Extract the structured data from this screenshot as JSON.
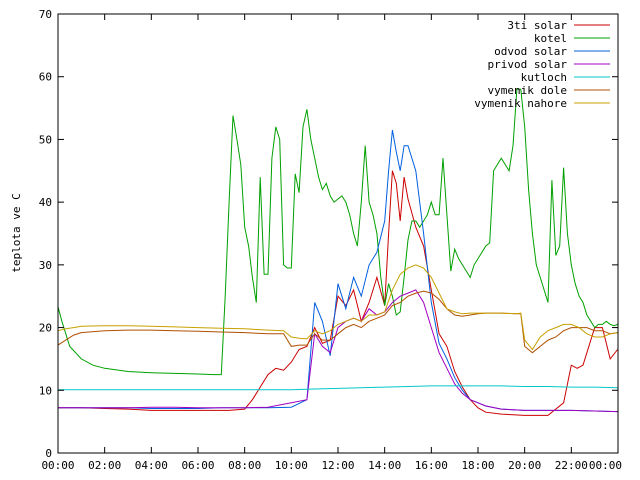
{
  "chart_data": {
    "type": "line",
    "ylabel": "teplota ve C",
    "xlabel": "",
    "title": "",
    "xlim": [
      "00:00",
      "00:00"
    ],
    "ylim": [
      0,
      70
    ],
    "x_ticks": [
      "00:00",
      "02:00",
      "04:00",
      "06:00",
      "08:00",
      "10:00",
      "12:00",
      "14:00",
      "16:00",
      "18:00",
      "20:00",
      "22:00",
      "00:00"
    ],
    "y_ticks": [
      0,
      10,
      20,
      30,
      40,
      50,
      60,
      70
    ],
    "grid": false,
    "legend_position": "top-right",
    "series": [
      {
        "name": "3ti solar",
        "color": "#cc0000",
        "x": [
          0,
          60,
          120,
          180,
          240,
          300,
          360,
          420,
          440,
          460,
          480,
          500,
          520,
          540,
          560,
          580,
          600,
          620,
          640,
          660,
          680,
          700,
          720,
          740,
          760,
          780,
          800,
          820,
          840,
          850,
          860,
          870,
          880,
          890,
          900,
          920,
          940,
          960,
          980,
          1000,
          1020,
          1040,
          1060,
          1080,
          1100,
          1140,
          1200,
          1260,
          1300,
          1320,
          1335,
          1350,
          1380,
          1400,
          1420,
          1439
        ],
        "y": [
          7.2,
          7.2,
          7.1,
          7.0,
          6.8,
          6.8,
          6.8,
          6.8,
          6.8,
          6.9,
          7.0,
          8.5,
          10.5,
          12.5,
          13.5,
          13.2,
          14.5,
          16.5,
          17.0,
          20.0,
          17.5,
          18.0,
          25.0,
          23.5,
          26.0,
          21.0,
          24.0,
          28.0,
          23.5,
          35.0,
          45.0,
          43.0,
          37.0,
          44.0,
          40.5,
          36.0,
          33.0,
          26.0,
          19.0,
          17.0,
          13.0,
          10.5,
          8.5,
          7.2,
          6.5,
          6.2,
          6.0,
          6.0,
          8.0,
          14.0,
          13.5,
          14.0,
          20.0,
          20.0,
          15.0,
          16.5
        ]
      },
      {
        "name": "kotel",
        "color": "#00a000",
        "x": [
          0,
          10,
          20,
          30,
          60,
          90,
          120,
          180,
          240,
          300,
          360,
          400,
          420,
          430,
          440,
          450,
          460,
          470,
          480,
          490,
          500,
          510,
          520,
          530,
          540,
          550,
          560,
          570,
          580,
          590,
          600,
          610,
          620,
          630,
          640,
          650,
          660,
          670,
          680,
          690,
          700,
          710,
          720,
          730,
          740,
          750,
          760,
          770,
          780,
          790,
          800,
          810,
          820,
          830,
          840,
          850,
          860,
          870,
          880,
          890,
          900,
          910,
          920,
          930,
          940,
          950,
          960,
          970,
          980,
          990,
          1000,
          1010,
          1020,
          1030,
          1040,
          1050,
          1060,
          1070,
          1080,
          1090,
          1100,
          1110,
          1120,
          1130,
          1140,
          1160,
          1170,
          1180,
          1190,
          1200,
          1210,
          1220,
          1230,
          1240,
          1250,
          1260,
          1270,
          1280,
          1290,
          1300,
          1310,
          1320,
          1330,
          1340,
          1350,
          1360,
          1370,
          1380,
          1390,
          1400,
          1410,
          1420,
          1430,
          1439
        ],
        "y": [
          23.3,
          21.0,
          19.0,
          17.0,
          15.0,
          14.0,
          13.5,
          13.0,
          12.8,
          12.7,
          12.6,
          12.5,
          12.5,
          25.0,
          40.0,
          53.8,
          50.0,
          46.0,
          36.0,
          33.0,
          28.0,
          24.0,
          44.0,
          28.5,
          28.5,
          47.0,
          52.0,
          50.0,
          30.0,
          29.5,
          29.5,
          44.5,
          41.5,
          52.0,
          54.8,
          50.0,
          47.0,
          44.0,
          42.0,
          43.0,
          41.0,
          40.0,
          40.5,
          41.0,
          40.0,
          38.0,
          35.0,
          33.0,
          40.0,
          49.0,
          40.0,
          38.0,
          35.0,
          28.0,
          23.5,
          27.0,
          25.0,
          22.0,
          22.5,
          28.0,
          34.0,
          37.0,
          37.0,
          36.0,
          37.0,
          38.0,
          40.0,
          38.0,
          38.0,
          47.0,
          38.0,
          29.0,
          32.5,
          31.0,
          30.0,
          29.0,
          28.0,
          30.0,
          31.0,
          32.0,
          33.0,
          33.5,
          45.0,
          46.0,
          47.0,
          45.0,
          49.0,
          58.0,
          58.0,
          52.0,
          42.0,
          35.0,
          30.0,
          28.0,
          26.0,
          24.0,
          43.5,
          31.5,
          33.0,
          45.5,
          35.0,
          30.0,
          27.0,
          25.0,
          24.0,
          22.0,
          21.0,
          20.0,
          20.5,
          20.5,
          21.0,
          20.5,
          20.3,
          20.5
        ]
      },
      {
        "name": "odvod solar",
        "color": "#0060e0",
        "x": [
          0,
          60,
          120,
          180,
          240,
          300,
          360,
          420,
          480,
          540,
          600,
          640,
          660,
          680,
          700,
          720,
          740,
          760,
          780,
          800,
          820,
          840,
          850,
          860,
          870,
          880,
          890,
          900,
          920,
          940,
          960,
          980,
          1000,
          1020,
          1040,
          1060,
          1080,
          1100,
          1140,
          1200,
          1260,
          1320,
          1380,
          1439
        ],
        "y": [
          7.2,
          7.2,
          7.2,
          7.2,
          7.1,
          7.1,
          7.1,
          7.2,
          7.2,
          7.2,
          7.3,
          8.5,
          24.0,
          21.0,
          15.5,
          27.0,
          23.0,
          28.0,
          25.0,
          30.0,
          32.0,
          37.0,
          45.0,
          51.5,
          48.0,
          45.0,
          49.0,
          49.0,
          45.0,
          35.0,
          24.0,
          17.5,
          15.0,
          12.0,
          10.0,
          8.5,
          8.0,
          7.5,
          7.0,
          6.8,
          6.8,
          6.8,
          6.7,
          6.6
        ]
      },
      {
        "name": "privod solar",
        "color": "#a000c0",
        "x": [
          0,
          60,
          120,
          180,
          240,
          300,
          360,
          420,
          480,
          540,
          600,
          640,
          660,
          680,
          700,
          720,
          740,
          760,
          780,
          800,
          820,
          840,
          860,
          880,
          900,
          920,
          940,
          960,
          980,
          1000,
          1020,
          1040,
          1060,
          1080,
          1100,
          1140,
          1200,
          1260,
          1320,
          1380,
          1439
        ],
        "y": [
          7.2,
          7.2,
          7.2,
          7.2,
          7.3,
          7.3,
          7.2,
          7.2,
          7.2,
          7.3,
          8.0,
          8.5,
          19.0,
          17.0,
          16.0,
          20.0,
          21.0,
          21.5,
          21.0,
          23.0,
          22.0,
          22.5,
          24.0,
          25.0,
          25.5,
          26.0,
          24.0,
          20.0,
          16.0,
          13.5,
          11.0,
          9.5,
          8.5,
          8.0,
          7.5,
          7.0,
          6.8,
          6.8,
          6.8,
          6.7,
          6.6
        ]
      },
      {
        "name": "kutloch",
        "color": "#00c8c8",
        "x": [
          0,
          120,
          240,
          360,
          480,
          600,
          660,
          720,
          780,
          840,
          900,
          960,
          1020,
          1080,
          1140,
          1200,
          1260,
          1320,
          1380,
          1439
        ],
        "y": [
          10.1,
          10.1,
          10.1,
          10.1,
          10.1,
          10.1,
          10.2,
          10.3,
          10.4,
          10.5,
          10.6,
          10.7,
          10.7,
          10.7,
          10.7,
          10.6,
          10.6,
          10.5,
          10.5,
          10.4
        ]
      },
      {
        "name": "vymenik dole",
        "color": "#b05000",
        "x": [
          0,
          20,
          40,
          60,
          120,
          180,
          240,
          300,
          360,
          420,
          480,
          540,
          580,
          600,
          620,
          640,
          660,
          680,
          700,
          720,
          740,
          760,
          780,
          800,
          820,
          840,
          860,
          880,
          900,
          920,
          940,
          960,
          980,
          1000,
          1020,
          1040,
          1060,
          1080,
          1100,
          1140,
          1180,
          1190,
          1200,
          1220,
          1240,
          1260,
          1280,
          1300,
          1320,
          1340,
          1360,
          1380,
          1400,
          1420,
          1439
        ],
        "y": [
          17.2,
          18.0,
          18.8,
          19.2,
          19.5,
          19.6,
          19.6,
          19.5,
          19.4,
          19.3,
          19.2,
          19.0,
          19.0,
          17.0,
          17.2,
          17.2,
          19.0,
          18.0,
          18.0,
          19.0,
          20.0,
          20.5,
          20.0,
          21.0,
          21.5,
          22.0,
          23.5,
          24.0,
          25.0,
          25.5,
          25.8,
          25.5,
          24.5,
          23.0,
          22.0,
          21.8,
          22.0,
          22.2,
          22.3,
          22.3,
          22.2,
          22.2,
          17.0,
          16.0,
          17.0,
          18.0,
          18.5,
          19.5,
          20.0,
          20.0,
          20.0,
          19.5,
          19.5,
          19.0,
          19.2
        ]
      },
      {
        "name": "vymenik nahore",
        "color": "#c8a000",
        "x": [
          0,
          20,
          40,
          60,
          120,
          180,
          240,
          300,
          360,
          420,
          480,
          540,
          580,
          600,
          620,
          640,
          660,
          680,
          700,
          720,
          740,
          760,
          780,
          800,
          820,
          840,
          860,
          880,
          900,
          920,
          940,
          960,
          980,
          1000,
          1020,
          1040,
          1060,
          1080,
          1100,
          1140,
          1180,
          1190,
          1200,
          1220,
          1240,
          1260,
          1280,
          1300,
          1320,
          1340,
          1360,
          1380,
          1400,
          1420,
          1439
        ],
        "y": [
          19.5,
          19.8,
          20.0,
          20.2,
          20.3,
          20.3,
          20.2,
          20.1,
          20.0,
          19.9,
          19.8,
          19.6,
          19.5,
          18.5,
          18.3,
          18.2,
          19.5,
          19.0,
          19.5,
          20.5,
          21.0,
          21.5,
          21.0,
          22.0,
          22.0,
          22.5,
          26.0,
          28.5,
          29.5,
          30.0,
          29.5,
          28.0,
          25.5,
          23.0,
          22.5,
          22.2,
          22.3,
          22.3,
          22.3,
          22.3,
          22.2,
          22.3,
          18.0,
          16.5,
          18.5,
          19.5,
          20.0,
          20.5,
          20.5,
          20.0,
          19.0,
          18.5,
          18.5,
          19.0,
          19.2
        ]
      }
    ]
  }
}
